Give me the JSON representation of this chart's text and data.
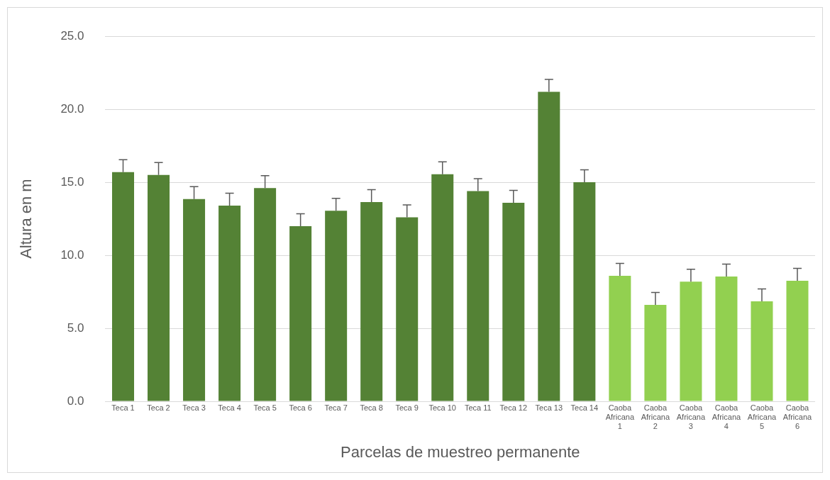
{
  "chart_data": {
    "type": "bar",
    "xlabel": "Parcelas de muestreo permanente",
    "ylabel": "Altura en m",
    "categories": [
      "Teca 1",
      "Teca 2",
      "Teca 3",
      "Teca 4",
      "Teca 5",
      "Teca 6",
      "Teca 7",
      "Teca 8",
      "Teca 9",
      "Teca 10",
      "Teca 11",
      "Teca 12",
      "Teca 13",
      "Teca 14",
      "Caoba Africana 1",
      "Caoba Africana 2",
      "Caoba Africana 3",
      "Caoba Africana 4",
      "Caoba Africana 5",
      "Caoba Africana 6"
    ],
    "values": [
      15.7,
      15.5,
      13.85,
      13.4,
      14.6,
      12.0,
      13.05,
      13.65,
      12.6,
      15.55,
      14.4,
      13.6,
      21.2,
      15.0,
      8.6,
      6.6,
      8.2,
      8.55,
      6.85,
      8.25
    ],
    "colors": [
      "#548235",
      "#548235",
      "#548235",
      "#548235",
      "#548235",
      "#548235",
      "#548235",
      "#548235",
      "#548235",
      "#548235",
      "#548235",
      "#548235",
      "#548235",
      "#548235",
      "#92d050",
      "#92d050",
      "#92d050",
      "#92d050",
      "#92d050",
      "#92d050"
    ],
    "errors": [
      0.85,
      0.85,
      0.85,
      0.85,
      0.85,
      0.85,
      0.85,
      0.85,
      0.85,
      0.85,
      0.85,
      0.85,
      0.85,
      0.85,
      0.85,
      0.85,
      0.85,
      0.85,
      0.85,
      0.85
    ],
    "ylim": [
      0,
      25
    ],
    "yticks": [
      {
        "value": 0,
        "label": "0.0"
      },
      {
        "value": 5,
        "label": "5.0"
      },
      {
        "value": 10,
        "label": "10.0"
      },
      {
        "value": 15,
        "label": "15.0"
      },
      {
        "value": 20,
        "label": "20.0"
      },
      {
        "value": 25,
        "label": "25.0"
      }
    ],
    "grid": "y"
  }
}
